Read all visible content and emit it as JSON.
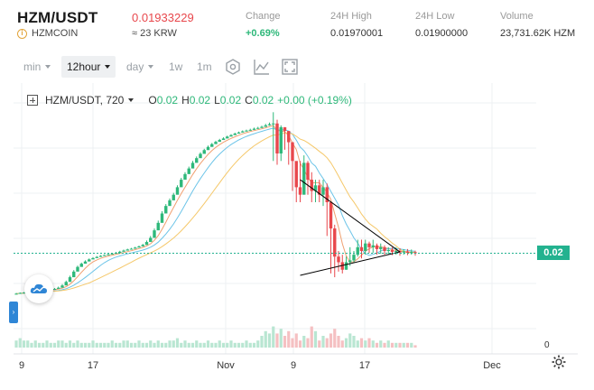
{
  "ticker": {
    "pair": "HZM/USDT",
    "coin_name": "HZMCOIN",
    "price": "0.01933229",
    "price_krw": "≈ 23 KRW",
    "stats": [
      {
        "label": "Change",
        "value": "+0.69%"
      },
      {
        "label": "24H High",
        "value": "0.01970001"
      },
      {
        "label": "24H Low",
        "value": "0.01900000"
      },
      {
        "label": "Volume",
        "value": "23,731.62K HZM"
      }
    ]
  },
  "toolbar": {
    "min_label": "min",
    "interval_label": "12hour",
    "day_label": "day",
    "week_label": "1w",
    "month_label": "1m",
    "icons": [
      "settings-hex-icon",
      "indicator-icon",
      "fullscreen-icon"
    ]
  },
  "legend": {
    "symbol": "HZM/USDT, 720",
    "o_label": "O",
    "o_value": "0.02",
    "h_label": "H",
    "h_value": "0.02",
    "l_label": "L",
    "l_value": "0.02",
    "c_label": "C",
    "c_value": "0.02",
    "change": "+0.00 (+0.19%)"
  },
  "chart_data": {
    "type": "candlestick",
    "x_ticks": [
      "9",
      "17",
      "Nov",
      "9",
      "17",
      "Dec"
    ],
    "last_price_label": "0.02",
    "volume_axis_label": "0",
    "colors": {
      "up": "#2eb87a",
      "down": "#e8474c",
      "ma_fast": "#f0a070",
      "ma_mid": "#6cc4e8",
      "ma_slow": "#f5c86a",
      "price_line": "#23b28f"
    },
    "series": {
      "start": 0.0095,
      "closes": [
        0.00952,
        0.00956,
        0.00958,
        0.0096,
        0.00962,
        0.00964,
        0.00968,
        0.00972,
        0.00974,
        0.00976,
        0.00978,
        0.00984,
        0.00996,
        0.01015,
        0.0104,
        0.0107,
        0.01095,
        0.01112,
        0.01124,
        0.01135,
        0.01142,
        0.01148,
        0.01154,
        0.01158,
        0.01162,
        0.01166,
        0.0117,
        0.01176,
        0.01182,
        0.01188,
        0.01192,
        0.01198,
        0.01204,
        0.01212,
        0.01228,
        0.0125,
        0.0129,
        0.0133,
        0.0138,
        0.0142,
        0.0145,
        0.0148,
        0.0152,
        0.0156,
        0.0159,
        0.0162,
        0.0165,
        0.01675,
        0.01698,
        0.01718,
        0.01735,
        0.0175,
        0.01762,
        0.01772,
        0.0178,
        0.0179,
        0.01798,
        0.01806,
        0.01812,
        0.01818,
        0.01822,
        0.01826,
        0.01832,
        0.01836,
        0.01842,
        0.0185,
        0.01856,
        0.0186,
        0.017,
        0.0184,
        0.0182,
        0.0176,
        0.0166,
        0.0152,
        0.0148,
        0.0165,
        0.0156,
        0.015,
        0.0153,
        0.0148,
        0.0152,
        0.0144,
        0.013,
        0.0115,
        0.0112,
        0.0108,
        0.0112,
        0.0113,
        0.0116,
        0.012,
        0.0118,
        0.0122,
        0.012,
        0.0121,
        0.0119,
        0.012,
        0.0118,
        0.01185,
        0.01175,
        0.0118,
        0.01172,
        0.01178,
        0.0117,
        0.01174,
        0.01168
      ],
      "highs": [
        0.00956,
        0.00959,
        0.00961,
        0.00963,
        0.00965,
        0.00967,
        0.00971,
        0.00975,
        0.00977,
        0.00979,
        0.00982,
        0.0099,
        0.01003,
        0.01022,
        0.01048,
        0.01078,
        0.01102,
        0.01118,
        0.0113,
        0.0114,
        0.01147,
        0.01153,
        0.01158,
        0.01162,
        0.01166,
        0.0117,
        0.01175,
        0.01181,
        0.01187,
        0.01192,
        0.01196,
        0.01202,
        0.01209,
        0.01218,
        0.01236,
        0.0126,
        0.013,
        0.01342,
        0.01392,
        0.0143,
        0.0146,
        0.0149,
        0.0153,
        0.0157,
        0.016,
        0.0163,
        0.0166,
        0.01684,
        0.01706,
        0.01725,
        0.01742,
        0.01756,
        0.01768,
        0.01778,
        0.01786,
        0.01795,
        0.01803,
        0.01811,
        0.01817,
        0.01823,
        0.01827,
        0.01832,
        0.01838,
        0.01842,
        0.01848,
        0.01858,
        0.01865,
        0.0192,
        0.0188,
        0.0185,
        0.0184,
        0.018,
        0.0176,
        0.0165,
        0.0166,
        0.0169,
        0.0166,
        0.016,
        0.0156,
        0.0156,
        0.0156,
        0.0154,
        0.0144,
        0.0132,
        0.0118,
        0.0116,
        0.0115,
        0.012,
        0.0118,
        0.0124,
        0.0124,
        0.0124,
        0.0123,
        0.0124,
        0.0122,
        0.0122,
        0.0121,
        0.012,
        0.012,
        0.012,
        0.01195,
        0.0119,
        0.0119,
        0.01188,
        0.01182
      ],
      "lows": [
        0.00948,
        0.00952,
        0.00955,
        0.00957,
        0.00959,
        0.00961,
        0.00964,
        0.00968,
        0.00971,
        0.00973,
        0.00975,
        0.00979,
        0.00988,
        0.01005,
        0.0103,
        0.0106,
        0.01088,
        0.01106,
        0.01118,
        0.0113,
        0.01137,
        0.01143,
        0.01149,
        0.01154,
        0.01158,
        0.01162,
        0.01166,
        0.01171,
        0.01177,
        0.01183,
        0.01188,
        0.01193,
        0.01199,
        0.01206,
        0.0122,
        0.0124,
        0.0128,
        0.0132,
        0.0137,
        0.0141,
        0.0144,
        0.0147,
        0.0151,
        0.0155,
        0.0158,
        0.0161,
        0.0164,
        0.01666,
        0.0169,
        0.0171,
        0.01728,
        0.01744,
        0.01756,
        0.01766,
        0.01774,
        0.01784,
        0.01792,
        0.018,
        0.01806,
        0.01812,
        0.01817,
        0.01821,
        0.01826,
        0.01831,
        0.01836,
        0.01842,
        0.01848,
        0.0166,
        0.0164,
        0.0166,
        0.0172,
        0.0164,
        0.015,
        0.0144,
        0.0144,
        0.015,
        0.0148,
        0.0144,
        0.0144,
        0.0144,
        0.0142,
        0.0126,
        0.0106,
        0.0104,
        0.0107,
        0.0106,
        0.0108,
        0.011,
        0.0112,
        0.0115,
        0.0114,
        0.0116,
        0.0117,
        0.0117,
        0.0116,
        0.01165,
        0.0116,
        0.01163,
        0.01158,
        0.0116,
        0.01155,
        0.0116,
        0.01158,
        0.0116,
        0.01155
      ],
      "volumes": [
        3,
        4,
        3,
        3,
        2,
        3,
        2,
        2,
        3,
        2,
        2,
        3,
        3,
        2,
        3,
        2,
        3,
        2,
        2,
        2,
        3,
        2,
        2,
        2,
        2,
        3,
        2,
        2,
        3,
        3,
        2,
        2,
        3,
        2,
        2,
        3,
        2,
        3,
        2,
        2,
        3,
        3,
        4,
        2,
        3,
        2,
        2,
        3,
        2,
        2,
        3,
        2,
        2,
        3,
        2,
        2,
        3,
        2,
        2,
        2,
        3,
        2,
        2,
        3,
        5,
        7,
        6,
        9,
        6,
        8,
        5,
        7,
        4,
        6,
        3,
        5,
        4,
        9,
        7,
        3,
        5,
        4,
        6,
        8,
        5,
        3,
        4,
        6,
        5,
        3,
        4,
        3,
        4,
        3,
        2,
        3,
        2,
        3,
        2,
        2,
        2,
        2,
        2,
        2,
        1
      ]
    },
    "triangle": {
      "upper_from": [
        74,
        0.0156
      ],
      "lower_from": [
        74,
        0.0105
      ],
      "apex": [
        100,
        0.01175
      ]
    }
  }
}
